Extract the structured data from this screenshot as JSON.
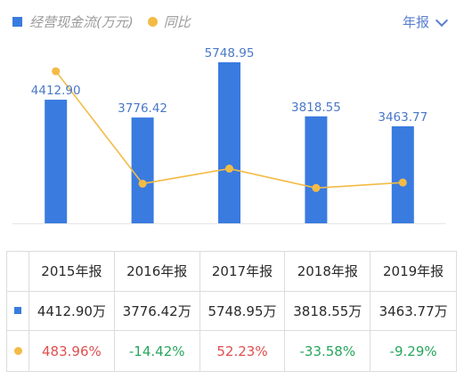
{
  "legend": {
    "bar_label": "经营现金流(万元)",
    "line_label": "同比"
  },
  "period_select": {
    "label": "年报"
  },
  "colors": {
    "bar": "#3a7be0",
    "line": "#f3bb45",
    "value_label": "#4a78c8",
    "positive": "#e04f4f",
    "negative": "#27a65c"
  },
  "chart_data": {
    "type": "bar",
    "categories": [
      "2015年报",
      "2016年报",
      "2017年报",
      "2018年报",
      "2019年报"
    ],
    "series": [
      {
        "name": "经营现金流(万元)",
        "type": "bar",
        "values": [
          4412.9,
          3776.42,
          5748.95,
          3818.55,
          3463.77
        ],
        "labels": [
          "4412.90",
          "3776.42",
          "5748.95",
          "3818.55",
          "3463.77"
        ]
      },
      {
        "name": "同比",
        "type": "line",
        "values": [
          483.96,
          -14.42,
          52.23,
          -33.58,
          -9.29
        ]
      }
    ],
    "grid": false
  },
  "table": {
    "headers": [
      "2015年报",
      "2016年报",
      "2017年报",
      "2018年报",
      "2019年报"
    ],
    "cash_flow_row": [
      "4412.90万",
      "3776.42万",
      "5748.95万",
      "3818.55万",
      "3463.77万"
    ],
    "yoy_row": [
      "483.96%",
      "-14.42%",
      "52.23%",
      "-33.58%",
      "-9.29%"
    ],
    "yoy_sign": [
      "positive",
      "negative",
      "positive",
      "negative",
      "negative"
    ]
  }
}
